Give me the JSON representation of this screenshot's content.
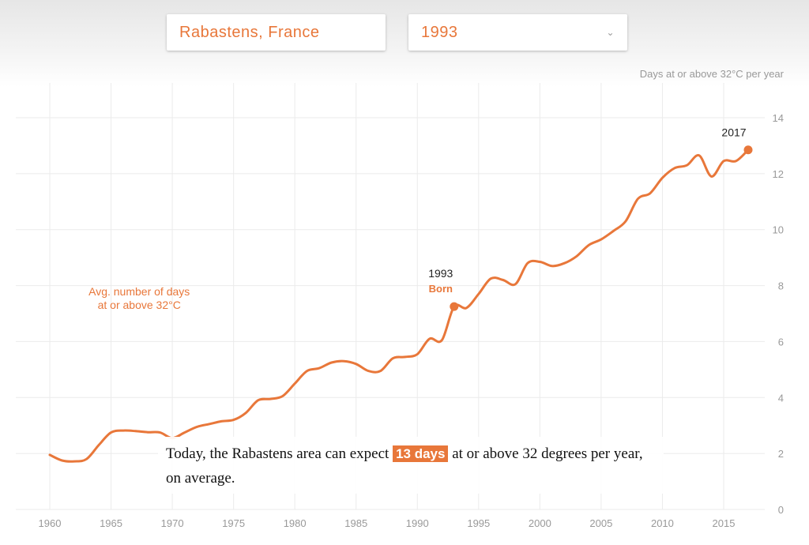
{
  "controls": {
    "location": "Rabastens, France",
    "year": "1993",
    "dropdown_icon": "chevron-down-icon"
  },
  "chart_data": {
    "type": "line",
    "ylabel": "Days at or above 32°C per year",
    "xlim": [
      1960,
      2017
    ],
    "ylim": [
      0,
      14
    ],
    "x_ticks": [
      1960,
      1965,
      1970,
      1975,
      1980,
      1985,
      1990,
      1995,
      2000,
      2005,
      2010,
      2015
    ],
    "y_ticks": [
      0,
      2,
      4,
      6,
      8,
      10,
      12,
      14
    ],
    "grid": true,
    "series": [
      {
        "name": "Avg. number of days at or above 32°C",
        "color": "#e8773a",
        "x": [
          1960,
          1961,
          1962,
          1963,
          1964,
          1965,
          1966,
          1967,
          1968,
          1969,
          1970,
          1971,
          1972,
          1973,
          1974,
          1975,
          1976,
          1977,
          1978,
          1979,
          1980,
          1981,
          1982,
          1983,
          1984,
          1985,
          1986,
          1987,
          1988,
          1989,
          1990,
          1991,
          1992,
          1993,
          1994,
          1995,
          1996,
          1997,
          1998,
          1999,
          2000,
          2001,
          2002,
          2003,
          2004,
          2005,
          2006,
          2007,
          2008,
          2009,
          2010,
          2011,
          2012,
          2013,
          2014,
          2015,
          2016,
          2017
        ],
        "y": [
          1.95,
          1.75,
          1.72,
          1.8,
          2.3,
          2.75,
          2.82,
          2.8,
          2.76,
          2.75,
          2.55,
          2.75,
          2.95,
          3.05,
          3.15,
          3.2,
          3.45,
          3.9,
          3.95,
          4.05,
          4.5,
          4.95,
          5.05,
          5.25,
          5.3,
          5.2,
          4.95,
          4.95,
          5.4,
          5.45,
          5.55,
          6.1,
          6.05,
          7.25,
          7.2,
          7.7,
          8.25,
          8.2,
          8.05,
          8.8,
          8.85,
          8.7,
          8.8,
          9.05,
          9.45,
          9.65,
          9.95,
          10.3,
          11.1,
          11.3,
          11.85,
          12.2,
          12.3,
          12.65,
          11.9,
          12.45,
          12.45,
          12.85
        ]
      }
    ],
    "annotations": {
      "series_label": "Avg. number of days at or above 32°C",
      "series_label_line1": "Avg. number of days",
      "series_label_line2": "at or above 32°C",
      "born_year": 1993,
      "born_value": 7.25,
      "born_year_label": "1993",
      "born_label": "Born",
      "end_year": 2017,
      "end_value": 12.85,
      "end_year_label": "2017"
    }
  },
  "callout": {
    "before": "Today, the Rabastens area can expect ",
    "highlight": "13 days",
    "after": " at or above 32 degrees per year, on average."
  }
}
